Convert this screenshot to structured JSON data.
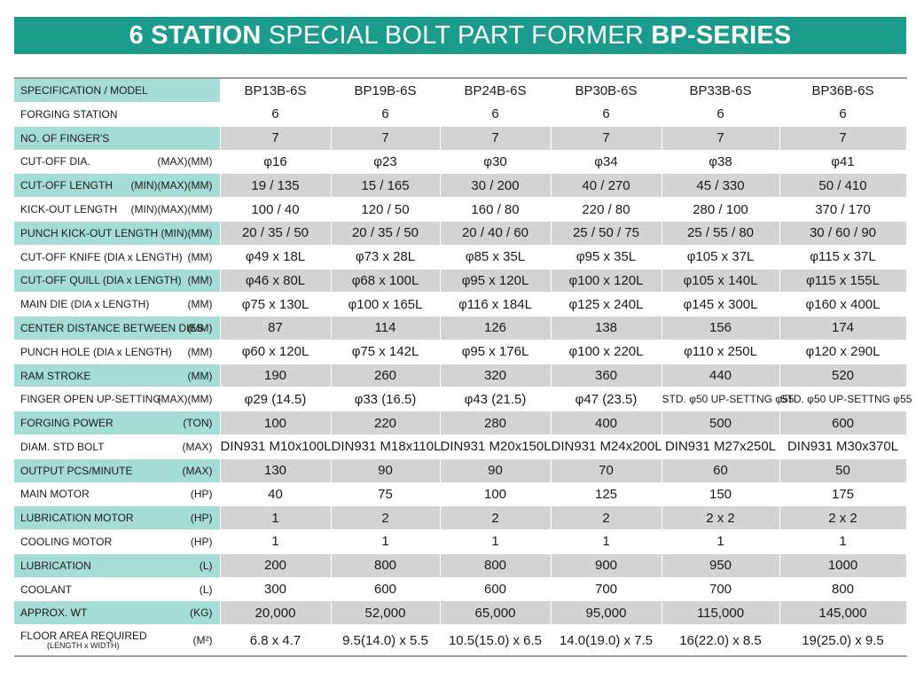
{
  "title": {
    "bold_prefix": "6 STATION",
    "middle": "SPECIAL BOLT PART FORMER",
    "bold_suffix": "BP-SERIES"
  },
  "table": {
    "header_label": "SPECIFICATION / MODEL",
    "models": [
      "BP13B-6S",
      "BP19B-6S",
      "BP24B-6S",
      "BP30B-6S",
      "BP33B-6S",
      "BP36B-6S"
    ],
    "rows": [
      {
        "label": "FORGING STATION",
        "unit": "",
        "values": [
          "6",
          "6",
          "6",
          "6",
          "6",
          "6"
        ]
      },
      {
        "label": "NO. OF FINGER'S",
        "unit": "",
        "values": [
          "7",
          "7",
          "7",
          "7",
          "7",
          "7"
        ]
      },
      {
        "label": "CUT-OFF DIA.",
        "unit": "(MAX)(MM)",
        "values": [
          "φ16",
          "φ23",
          "φ30",
          "φ34",
          "φ38",
          "φ41"
        ]
      },
      {
        "label": "CUT-OFF LENGTH",
        "unit": "(MIN)(MAX)(MM)",
        "values": [
          "19 / 135",
          "15 / 165",
          "30 / 200",
          "40 / 270",
          "45 / 330",
          "50 / 410"
        ]
      },
      {
        "label": "KICK-OUT LENGTH",
        "unit": "(MIN)(MAX)(MM)",
        "values": [
          "100 / 40",
          "120 / 50",
          "160 / 80",
          "220 / 80",
          "280 / 100",
          "370 / 170"
        ]
      },
      {
        "label": "PUNCH KICK-OUT LENGTH",
        "unit": "(MIN)(MM)",
        "values": [
          "20 / 35 / 50",
          "20 / 35 / 50",
          "20 / 40 / 60",
          "25 / 50 / 75",
          "25 / 55 / 80",
          "30 / 60 / 90"
        ]
      },
      {
        "label": "CUT-OFF KNIFE (DIA x LENGTH)",
        "unit": "(MM)",
        "values": [
          "φ49 x 18L",
          "φ73 x 28L",
          "φ85 x 35L",
          "φ95 x 35L",
          "φ105 x 37L",
          "φ115 x 37L"
        ]
      },
      {
        "label": "CUT-OFF QUILL (DIA x LENGTH)",
        "unit": "(MM)",
        "values": [
          "φ46 x 80L",
          "φ68 x 100L",
          "φ95 x 120L",
          "φ100 x 120L",
          "φ105 x 140L",
          "φ115 x 155L"
        ]
      },
      {
        "label": "MAIN DIE (DIA x LENGTH)",
        "unit": "(MM)",
        "values": [
          "φ75 x 130L",
          "φ100 x 165L",
          "φ116 x 184L",
          "φ125 x 240L",
          "φ145 x 300L",
          "φ160 x 400L"
        ]
      },
      {
        "label": "CENTER DISTANCE BETWEEN DIES",
        "unit": "(MM)",
        "values": [
          "87",
          "114",
          "126",
          "138",
          "156",
          "174"
        ]
      },
      {
        "label": "PUNCH HOLE (DIA x LENGTH)",
        "unit": "(MM)",
        "values": [
          "φ60 x 120L",
          "φ75 x 142L",
          "φ95 x 176L",
          "φ100 x 220L",
          "φ110 x 250L",
          "φ120 x 290L"
        ]
      },
      {
        "label": "RAM STROKE",
        "unit": "(MM)",
        "values": [
          "190",
          "260",
          "320",
          "360",
          "440",
          "520"
        ]
      },
      {
        "label": "FINGER OPEN UP-SETTING",
        "unit": "(MAX)(MM)",
        "values": [
          "φ29 (14.5)",
          "φ33 (16.5)",
          "φ43 (21.5)",
          "φ47 (23.5)",
          "STD. φ50 UP-SETTNG φ55",
          "STD. φ50 UP-SETTNG φ55"
        ]
      },
      {
        "label": "FORGING POWER",
        "unit": "(TON)",
        "values": [
          "100",
          "220",
          "280",
          "400",
          "500",
          "600"
        ]
      },
      {
        "label": "DIAM. STD BOLT",
        "unit": "(MAX)",
        "values": [
          "DIN931 M10x100L",
          "DIN931 M18x110L",
          "DIN931 M20x150L",
          "DIN931 M24x200L",
          "DIN931 M27x250L",
          "DIN931 M30x370L"
        ]
      },
      {
        "label": "OUTPUT PCS/MINUTE",
        "unit": "(MAX)",
        "values": [
          "130",
          "90",
          "90",
          "70",
          "60",
          "50"
        ]
      },
      {
        "label": "MAIN MOTOR",
        "unit": "(HP)",
        "values": [
          "40",
          "75",
          "100",
          "125",
          "150",
          "175"
        ]
      },
      {
        "label": "LUBRICATION MOTOR",
        "unit": "(HP)",
        "values": [
          "1",
          "2",
          "2",
          "2",
          "2 x 2",
          "2 x 2"
        ]
      },
      {
        "label": "COOLING MOTOR",
        "unit": "(HP)",
        "values": [
          "1",
          "1",
          "1",
          "1",
          "1",
          "1"
        ]
      },
      {
        "label": "LUBRICATION",
        "unit": "(L)",
        "values": [
          "200",
          "800",
          "800",
          "900",
          "950",
          "1000"
        ]
      },
      {
        "label": "COOLANT",
        "unit": "(L)",
        "values": [
          "300",
          "600",
          "600",
          "700",
          "700",
          "800"
        ]
      },
      {
        "label": "APPROX. WT",
        "unit": "(KG)",
        "values": [
          "20,000",
          "52,000",
          "65,000",
          "95,000",
          "115,000",
          "145,000"
        ]
      }
    ],
    "last_row": {
      "label": "FLOOR AREA REQUIRED",
      "sublabel": "(LENGTH x WIDTH)",
      "unit": "(M²)",
      "values": [
        "6.8 x 4.7",
        "9.5(14.0) x 5.5",
        "10.5(15.0) x 6.5",
        "14.0(19.0) x 7.5",
        "16(22.0) x 8.5",
        "19(25.0) x 9.5"
      ]
    }
  }
}
